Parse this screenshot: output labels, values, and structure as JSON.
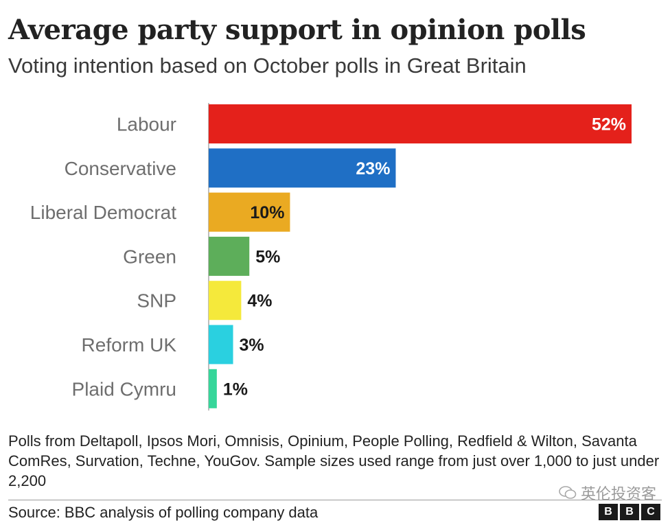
{
  "header": {
    "title": "Average party support in opinion polls",
    "subtitle": "Voting intention based on October polls in Great Britain"
  },
  "chart_data": {
    "type": "bar",
    "orientation": "horizontal",
    "title": "Average party support in opinion polls",
    "subtitle": "Voting intention based on October polls in Great Britain",
    "categories": [
      "Labour",
      "Conservative",
      "Liberal Democrat",
      "Green",
      "SNP",
      "Reform UK",
      "Plaid Cymru"
    ],
    "values": [
      52,
      23,
      10,
      5,
      4,
      3,
      1
    ],
    "value_labels": [
      "52%",
      "23%",
      "10%",
      "5%",
      "4%",
      "3%",
      "1%"
    ],
    "colors": [
      "#e4211b",
      "#1f6fc5",
      "#eaaa22",
      "#5dae5a",
      "#f5e93b",
      "#2ad0e0",
      "#36d69a"
    ],
    "value_label_colors": [
      "#ffffff",
      "#ffffff",
      "#1a1a1a",
      "#1a1a1a",
      "#1a1a1a",
      "#1a1a1a",
      "#1a1a1a"
    ],
    "xlim": [
      0,
      52
    ],
    "grid": false,
    "legend": "none"
  },
  "footer": {
    "note": "Polls from Deltapoll, Ipsos Mori, Omnisis, Opinium, People Polling, Redfield & Wilton, Savanta ComRes, Survation, Techne, YouGov. Sample sizes used range from just over 1,000 to just under 2,200",
    "source": "Source: BBC analysis of polling company data"
  },
  "watermark": {
    "text": "英伦投资客",
    "icon": "wechat-icon"
  },
  "logo": {
    "letters": [
      "B",
      "B",
      "C"
    ]
  }
}
